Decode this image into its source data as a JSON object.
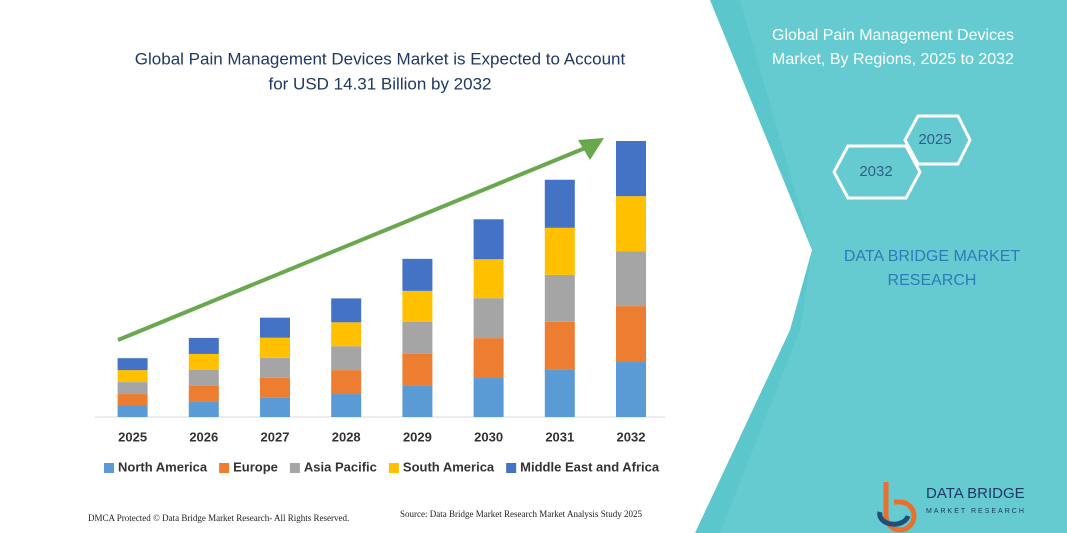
{
  "chart_data": {
    "type": "bar",
    "stacked": true,
    "title": [
      "Global Pain Management Devices Market is Expected to Account",
      "for USD 14.31 Billion by 2032"
    ],
    "categories": [
      "2025",
      "2026",
      "2027",
      "2028",
      "2029",
      "2030",
      "2031",
      "2032"
    ],
    "series": [
      {
        "name": "North America",
        "color": "#5b9bd5",
        "values": [
          0.62,
          0.78,
          0.99,
          1.19,
          1.61,
          2.02,
          2.44,
          2.85
        ]
      },
      {
        "name": "Europe",
        "color": "#ed7d31",
        "values": [
          0.57,
          0.83,
          1.04,
          1.24,
          1.66,
          2.07,
          2.49,
          2.9
        ]
      },
      {
        "name": "Asia Pacific",
        "color": "#a5a5a5",
        "values": [
          0.62,
          0.83,
          1.04,
          1.24,
          1.66,
          2.07,
          2.44,
          2.85
        ]
      },
      {
        "name": "South America",
        "color": "#ffc000",
        "values": [
          0.62,
          0.83,
          1.04,
          1.24,
          1.61,
          2.02,
          2.44,
          2.85
        ]
      },
      {
        "name": "Middle East and Africa",
        "color": "#4472c4",
        "values": [
          0.62,
          0.83,
          1.04,
          1.24,
          1.66,
          2.07,
          2.49,
          2.86
        ]
      }
    ]
  },
  "side_panel": {
    "title": [
      "Global Pain Management Devices",
      "Market, By Regions, 2025 to 2032"
    ],
    "hexagons": [
      "2025",
      "2032"
    ],
    "brand": [
      "DATA BRIDGE MARKET",
      "RESEARCH"
    ]
  },
  "logo": {
    "name": "DATA BRIDGE",
    "tagline": "MARKET RESEARCH"
  },
  "footer": {
    "copyright": "DMCA Protected © Data Bridge Market Research- All Rights Reserved.",
    "source": "Source: Data Bridge Market Research Market Analysis Study 2025"
  }
}
